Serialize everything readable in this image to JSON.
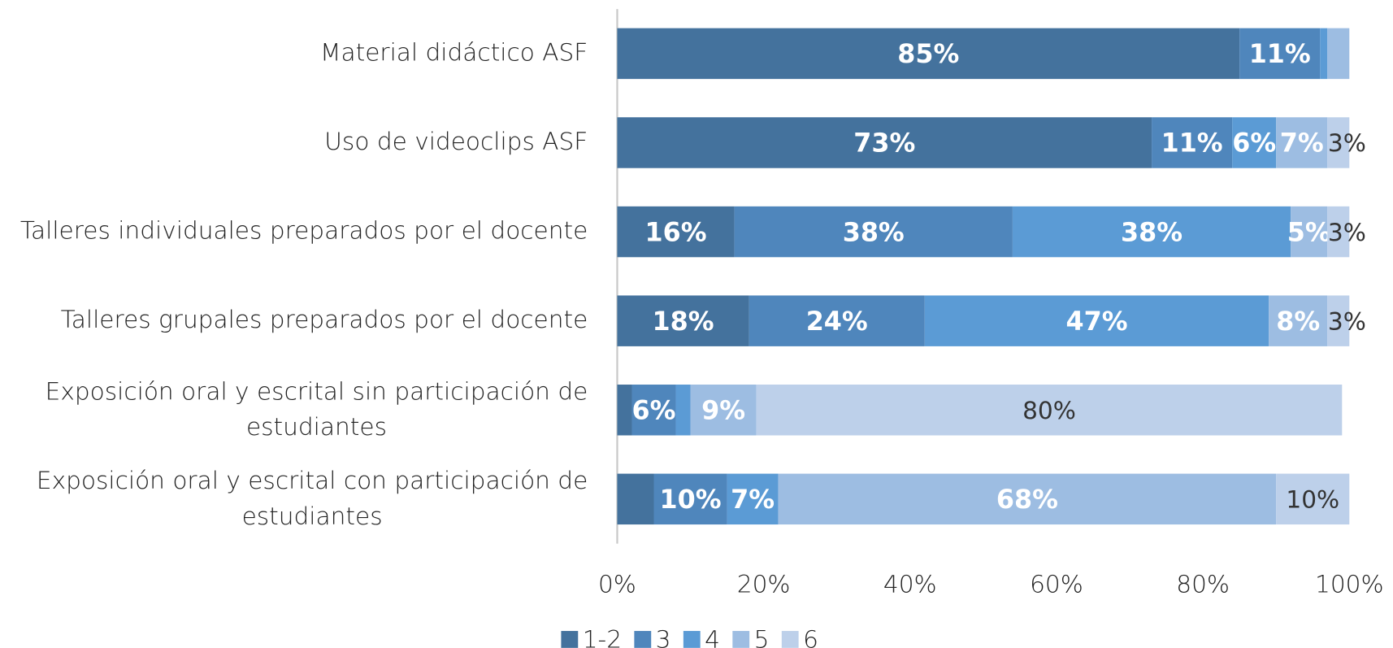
{
  "chart_data": {
    "type": "stacked-barh",
    "categories": [
      "Material didáctico ASF",
      "Uso de videoclips ASF",
      "Talleres individuales preparados por el docente",
      "Talleres grupales preparados por el docente",
      "Exposición oral y escrital sin participación de estudiantes",
      "Exposición oral y escrital con participación de estudiantes"
    ],
    "series": [
      {
        "name": "1-2",
        "color": "#44729d",
        "values": [
          85,
          73,
          16,
          18,
          2,
          5
        ],
        "value_labels": [
          "85%",
          "73%",
          "16%",
          "18%",
          null,
          null
        ]
      },
      {
        "name": "3",
        "color": "#4f86bc",
        "values": [
          11,
          11,
          38,
          24,
          6,
          10
        ],
        "value_labels": [
          "11%",
          "11%",
          "38%",
          "24%",
          "6%",
          "10%"
        ]
      },
      {
        "name": "4",
        "color": "#5b9bd5",
        "values": [
          1,
          6,
          38,
          47,
          2,
          7
        ],
        "value_labels": [
          null,
          "6%",
          "38%",
          "47%",
          null,
          "7%"
        ]
      },
      {
        "name": "5",
        "color": "#9dbde2",
        "values": [
          3,
          7,
          5,
          8,
          9,
          68
        ],
        "value_labels": [
          null,
          "7%",
          "5%",
          "8%",
          "9%",
          "68%"
        ]
      },
      {
        "name": "6",
        "color": "#bdd0ea",
        "values": [
          0,
          3,
          3,
          3,
          80,
          10
        ],
        "value_labels": [
          null,
          "3%",
          "3%",
          "3%",
          "80%",
          "10%"
        ]
      }
    ],
    "xlim": [
      0,
      100
    ],
    "xticks": [
      {
        "value": 0,
        "label": "0%"
      },
      {
        "value": 20,
        "label": "20%"
      },
      {
        "value": 40,
        "label": "40%"
      },
      {
        "value": 60,
        "label": "60%"
      },
      {
        "value": 80,
        "label": "80%"
      },
      {
        "value": 100,
        "label": "100%"
      }
    ],
    "legend": "bottom"
  }
}
